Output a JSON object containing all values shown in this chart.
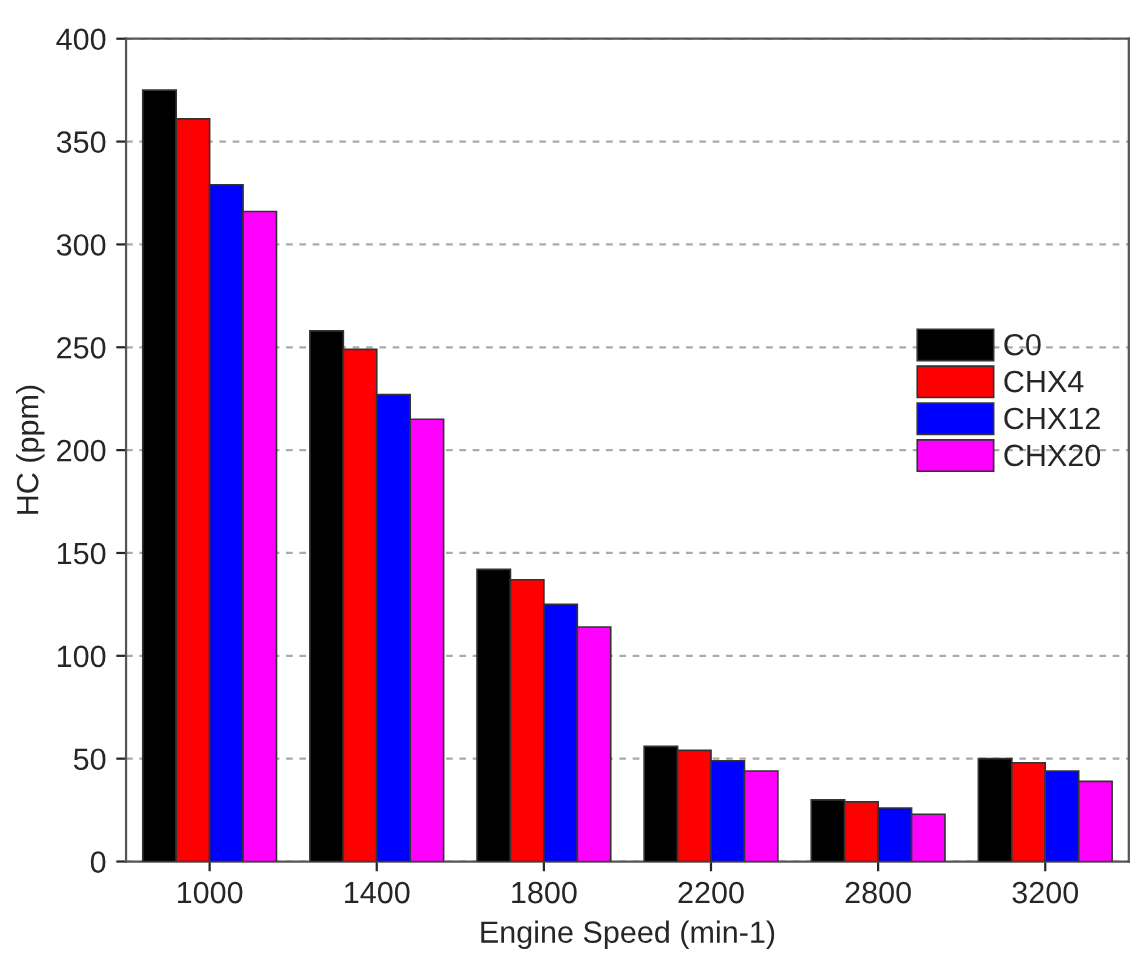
{
  "chart_data": {
    "type": "bar",
    "xlabel": "Engine Speed (min-1)",
    "ylabel": "HC (ppm)",
    "categories": [
      "1000",
      "1400",
      "1800",
      "2200",
      "2800",
      "3200"
    ],
    "series": [
      {
        "name": "C0",
        "color": "#000000",
        "values": [
          375,
          258,
          142,
          56,
          30,
          50
        ]
      },
      {
        "name": "CHX4",
        "color": "#ff0000",
        "values": [
          361,
          249,
          137,
          54,
          29,
          48
        ]
      },
      {
        "name": "CHX12",
        "color": "#0000ff",
        "values": [
          329,
          227,
          125,
          49,
          26,
          44
        ]
      },
      {
        "name": "CHX20",
        "color": "#ff00ff",
        "values": [
          316,
          215,
          114,
          44,
          23,
          39
        ]
      }
    ],
    "ylim": [
      0,
      400
    ],
    "yticks": [
      0,
      50,
      100,
      150,
      200,
      250,
      300,
      350,
      400
    ],
    "grid": "y",
    "legend": "right"
  }
}
